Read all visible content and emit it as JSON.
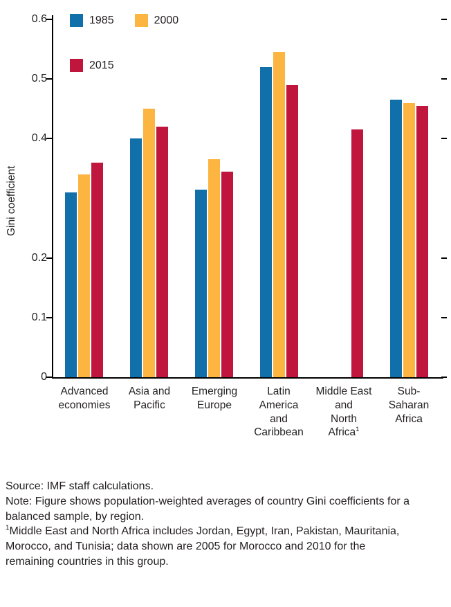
{
  "chart_data": {
    "type": "bar",
    "title": "",
    "xlabel": "",
    "ylabel": "Gini coefficient",
    "ylim": [
      0,
      0.6
    ],
    "grid": false,
    "legend_position": "top-left-inside",
    "yticks": [
      {
        "label": "0.6",
        "value": 0.6
      },
      {
        "label": "0.5",
        "value": 0.5
      },
      {
        "label": "0.4",
        "value": 0.4
      },
      {
        "label": "0.2",
        "value": 0.2
      },
      {
        "label": "0.1",
        "value": 0.1
      },
      {
        "label": "0",
        "value": 0
      }
    ],
    "legend": [
      {
        "label": "1985",
        "color": "#1170aa"
      },
      {
        "label": "2000",
        "color": "#fbb540"
      },
      {
        "label": "2015",
        "color": "#c0163e"
      }
    ],
    "categories": [
      {
        "id": "advanced-economies",
        "lines": [
          "Advanced",
          "economies"
        ]
      },
      {
        "id": "asia-and-pacific",
        "lines": [
          "Asia and",
          "Pacific"
        ]
      },
      {
        "id": "emerging-europe",
        "lines": [
          "Emerging",
          "Europe"
        ]
      },
      {
        "id": "latin-america-and-caribbean",
        "lines": [
          "Latin",
          "America",
          "and",
          "Caribbean"
        ]
      },
      {
        "id": "middle-east-and-north-africa",
        "lines": [
          "Middle East",
          "and",
          "North",
          "Africa"
        ],
        "sup": "1"
      },
      {
        "id": "sub-saharan-africa",
        "lines": [
          "Sub-",
          "Saharan",
          "Africa"
        ]
      }
    ],
    "series": [
      {
        "name": "1985",
        "color": "#1170aa",
        "values": [
          0.31,
          0.4,
          0.315,
          0.52,
          null,
          0.465
        ]
      },
      {
        "name": "2000",
        "color": "#fbb540",
        "values": [
          0.34,
          0.45,
          0.365,
          0.545,
          null,
          0.46
        ]
      },
      {
        "name": "2015",
        "color": "#c0163e",
        "values": [
          0.36,
          0.42,
          0.345,
          0.49,
          0.415,
          0.455
        ]
      }
    ]
  },
  "footer": {
    "source": "Source: IMF staff calculations.",
    "note": "Note: Figure shows population-weighted averages of country Gini coefficients for a balanced sample, by region.",
    "footnote_marker": "1",
    "footnote": "Middle East and North Africa includes Jordan, Egypt, Iran, Pakistan, Mauritania, Morocco, and Tunisia; data shown are 2005 for Morocco and 2010 for the remaining countries in this group."
  }
}
